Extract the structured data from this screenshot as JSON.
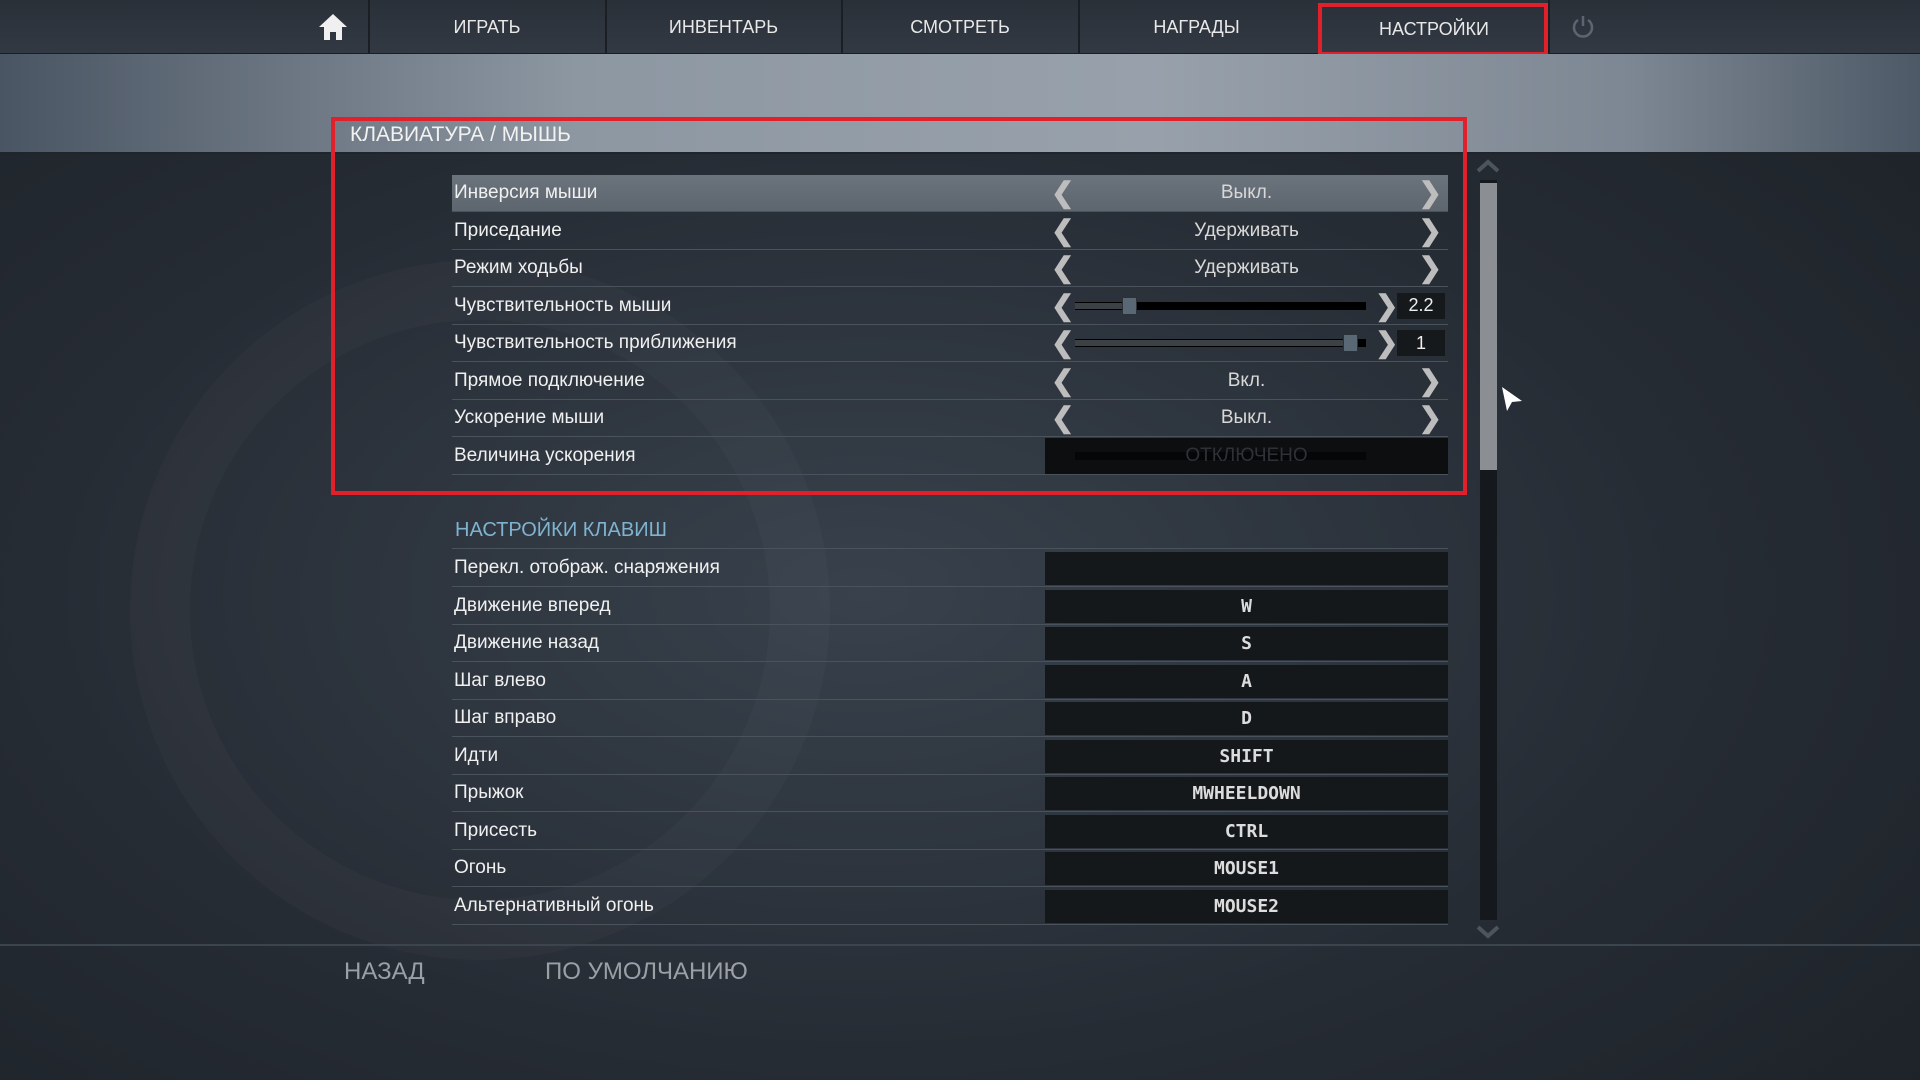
{
  "nav": {
    "home_icon": "home-icon",
    "tabs": [
      "ИГРАТЬ",
      "ИНВЕНТАРЬ",
      "СМОТРЕТЬ",
      "НАГРАДЫ",
      "НАСТРОЙКИ"
    ],
    "active": "НАСТРОЙКИ",
    "power_icon": "power-icon"
  },
  "section1": {
    "title": "КЛАВИАТУРА / МЫШЬ",
    "rows": [
      {
        "label": "Инверсия мыши",
        "value": "Выкл."
      },
      {
        "label": "Приседание",
        "value": "Удерживать"
      },
      {
        "label": "Режим ходьбы",
        "value": "Удерживать"
      },
      {
        "label": "Чувствительность мыши",
        "value": "2.2",
        "slider_fraction": 0.17
      },
      {
        "label": "Чувствительность приближения",
        "value": "1",
        "slider_fraction": 0.97
      },
      {
        "label": "Прямое подключение",
        "value": "Вкл."
      },
      {
        "label": "Ускорение мыши",
        "value": "Выкл."
      },
      {
        "label": "Величина ускорения",
        "value": "ОТКЛЮЧЕНО"
      }
    ]
  },
  "section2": {
    "title": "НАСТРОЙКИ КЛАВИШ",
    "rows": [
      {
        "label": "Перекл. отображ. снаряжения",
        "key": ""
      },
      {
        "label": "Движение вперед",
        "key": "W"
      },
      {
        "label": "Движение назад",
        "key": "S"
      },
      {
        "label": "Шаг влево",
        "key": "A"
      },
      {
        "label": "Шаг вправо",
        "key": "D"
      },
      {
        "label": "Идти",
        "key": "SHIFT"
      },
      {
        "label": "Прыжок",
        "key": "MWHEELDOWN"
      },
      {
        "label": "Присесть",
        "key": "CTRL"
      },
      {
        "label": "Огонь",
        "key": "MOUSE1"
      },
      {
        "label": "Альтернативный огонь",
        "key": "MOUSE2"
      }
    ]
  },
  "footer": {
    "back": "НАЗАД",
    "defaults": "ПО УМОЛЧАНИЮ"
  },
  "colors": {
    "highlight": "#e0202a",
    "section_header": "#7fb3d0"
  }
}
